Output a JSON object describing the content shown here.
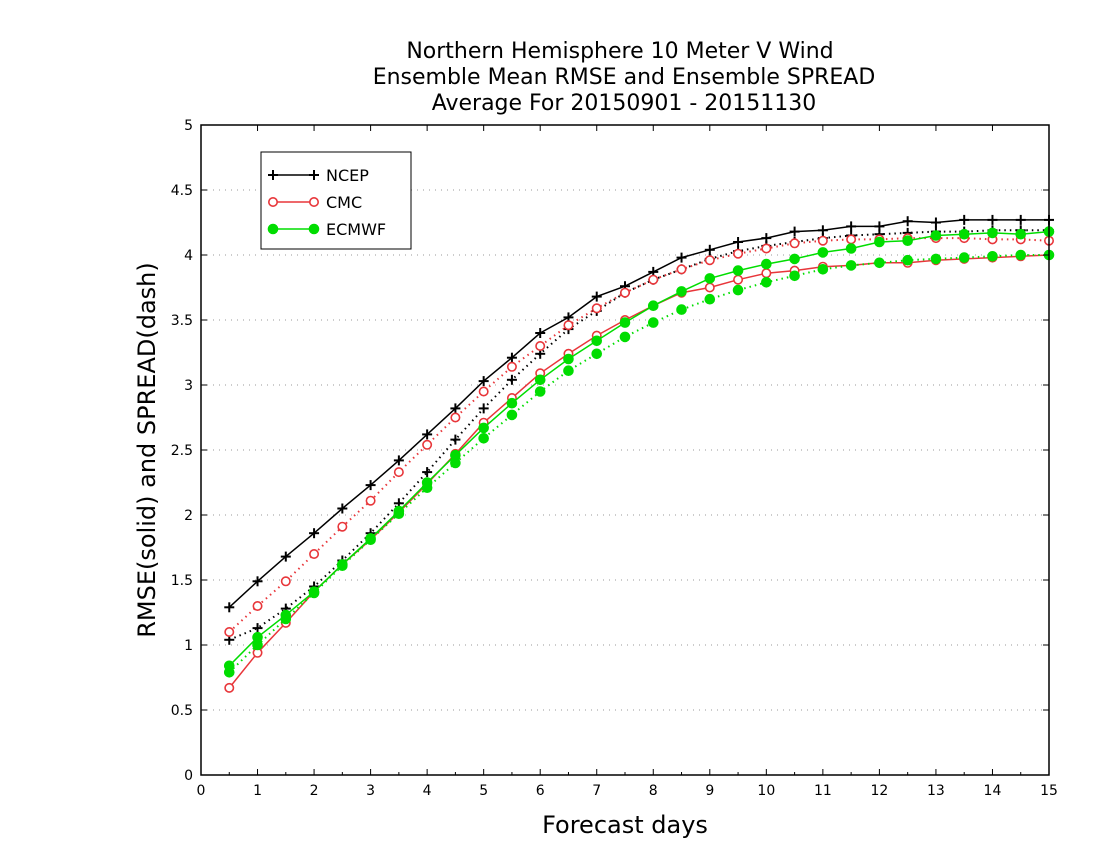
{
  "chart_data": {
    "type": "line",
    "title_lines": [
      "Northern Hemisphere 10 Meter V Wind",
      "Ensemble Mean RMSE and Ensemble SPREAD",
      "Average For 20150901 - 20151130"
    ],
    "xlabel": "Forecast days",
    "ylabel": "RMSE(solid) and SPREAD(dash)",
    "xlim": [
      0,
      15
    ],
    "ylim": [
      0,
      5
    ],
    "x_ticks": [
      "0",
      "1",
      "2",
      "3",
      "4",
      "5",
      "6",
      "7",
      "8",
      "9",
      "10",
      "11",
      "12",
      "13",
      "14",
      "15"
    ],
    "y_ticks": [
      "0",
      "0.5",
      "1",
      "1.5",
      "2",
      "2.5",
      "3",
      "3.5",
      "4",
      "4.5",
      "5"
    ],
    "grid": "horizontal dotted",
    "legend_placement": "top-left",
    "x": [
      0.5,
      1,
      1.5,
      2,
      2.5,
      3,
      3.5,
      4,
      4.5,
      5,
      5.5,
      6,
      6.5,
      7,
      7.5,
      8,
      8.5,
      9,
      9.5,
      10,
      10.5,
      11,
      11.5,
      12,
      12.5,
      13,
      13.5,
      14,
      14.5,
      15
    ],
    "series": [
      {
        "name": "NCEP",
        "color": "#000000",
        "marker": "plus",
        "rmse": [
          1.29,
          1.49,
          1.68,
          1.86,
          2.05,
          2.23,
          2.42,
          2.62,
          2.82,
          3.03,
          3.21,
          3.4,
          3.52,
          3.68,
          3.76,
          3.87,
          3.98,
          4.04,
          4.1,
          4.13,
          4.18,
          4.19,
          4.22,
          4.22,
          4.26,
          4.25,
          4.27,
          4.27,
          4.27,
          4.27
        ],
        "spread": [
          1.04,
          1.13,
          1.28,
          1.45,
          1.65,
          1.86,
          2.09,
          2.33,
          2.58,
          2.82,
          3.04,
          3.24,
          3.43,
          3.57,
          3.71,
          3.81,
          3.89,
          3.97,
          4.03,
          4.07,
          4.1,
          4.13,
          4.15,
          4.16,
          4.17,
          4.18,
          4.18,
          4.19,
          4.19,
          4.19
        ]
      },
      {
        "name": "CMC",
        "color": "#e8363a",
        "marker": "open-circle",
        "rmse": [
          0.67,
          0.94,
          1.17,
          1.41,
          1.62,
          1.81,
          2.02,
          2.24,
          2.47,
          2.71,
          2.9,
          3.09,
          3.24,
          3.38,
          3.5,
          3.61,
          3.71,
          3.75,
          3.81,
          3.86,
          3.88,
          3.91,
          3.92,
          3.94,
          3.94,
          3.96,
          3.97,
          3.98,
          3.99,
          4.0
        ],
        "spread": [
          1.1,
          1.3,
          1.49,
          1.7,
          1.91,
          2.11,
          2.33,
          2.54,
          2.75,
          2.95,
          3.14,
          3.3,
          3.46,
          3.59,
          3.71,
          3.81,
          3.89,
          3.96,
          4.01,
          4.05,
          4.09,
          4.11,
          4.12,
          4.12,
          4.13,
          4.13,
          4.13,
          4.12,
          4.12,
          4.11
        ]
      },
      {
        "name": "ECMWF",
        "color": "#00dd00",
        "marker": "filled-circle",
        "rmse": [
          0.84,
          1.06,
          1.23,
          1.41,
          1.62,
          1.82,
          2.03,
          2.25,
          2.46,
          2.67,
          2.86,
          3.04,
          3.2,
          3.34,
          3.48,
          3.61,
          3.72,
          3.82,
          3.88,
          3.93,
          3.97,
          4.02,
          4.05,
          4.1,
          4.11,
          4.15,
          4.16,
          4.17,
          4.16,
          4.18
        ],
        "spread": [
          0.79,
          1.0,
          1.2,
          1.4,
          1.61,
          1.81,
          2.01,
          2.21,
          2.4,
          2.59,
          2.77,
          2.95,
          3.11,
          3.24,
          3.37,
          3.48,
          3.58,
          3.66,
          3.73,
          3.79,
          3.84,
          3.89,
          3.92,
          3.94,
          3.96,
          3.97,
          3.98,
          3.99,
          4.0,
          4.0
        ]
      }
    ]
  }
}
